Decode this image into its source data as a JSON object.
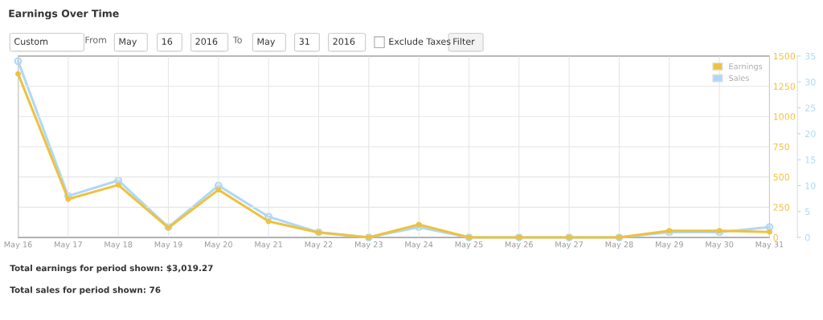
{
  "chart_data": {
    "type": "line",
    "title": "Earnings Over Time",
    "categories": [
      "May 16",
      "May 17",
      "May 18",
      "May 19",
      "May 20",
      "May 21",
      "May 22",
      "May 23",
      "May 24",
      "May 25",
      "May 26",
      "May 27",
      "May 28",
      "May 29",
      "May 30",
      "May 31"
    ],
    "series": [
      {
        "name": "Earnings",
        "color": "#edc240",
        "values": [
          1352,
          317,
          434,
          80,
          394,
          133,
          40,
          0,
          106,
          0,
          0,
          0,
          0,
          55,
          55,
          46
        ]
      },
      {
        "name": "Sales",
        "color": "#afd8f8",
        "axis": "y2",
        "values": [
          34,
          8,
          11,
          2,
          10,
          4,
          1,
          0,
          2,
          0,
          0,
          0,
          0,
          1,
          1,
          2
        ]
      }
    ],
    "ylim": [
      0,
      1500
    ],
    "yticks": [
      0,
      250,
      500,
      750,
      1000,
      1250,
      1500
    ],
    "y2lim": [
      0,
      35
    ],
    "y2ticks": [
      0,
      5,
      10,
      15,
      20,
      25,
      30,
      35
    ],
    "grid": true,
    "legend": "top right",
    "marker": "circle",
    "line_style": "solid",
    "annotations": [
      "Custom",
      "From",
      "May",
      "16",
      "2016",
      "To",
      "May",
      "31",
      "2016",
      "Exclude Taxes",
      "Filter",
      "Total earnings for period shown: $3,019.27",
      "Total sales for period shown: 76"
    ]
  }
}
